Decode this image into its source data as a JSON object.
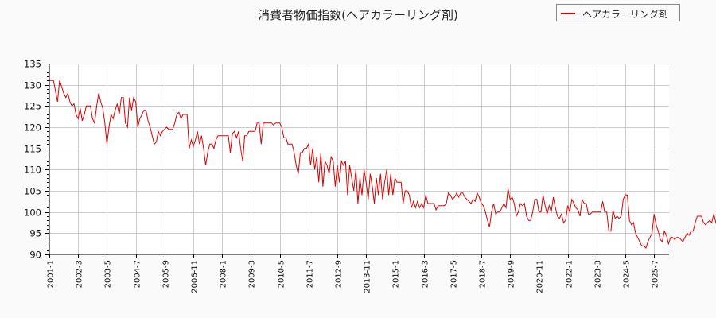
{
  "chart_data": {
    "type": "line",
    "title": "消費者物価指数(ヘアカラーリング剤)",
    "xlabel": "",
    "ylabel": "",
    "ylim": [
      90,
      135
    ],
    "yticks": [
      90,
      95,
      100,
      105,
      110,
      115,
      120,
      125,
      130,
      135
    ],
    "xticks": [
      "2001-1",
      "2002-3",
      "2003-5",
      "2004-7",
      "2005-9",
      "2006-11",
      "2008-1",
      "2009-3",
      "2010-5",
      "2011-7",
      "2012-9",
      "2013-11",
      "2015-1",
      "2016-3",
      "2017-5",
      "2018-7",
      "2019-9",
      "2020-11",
      "2022-1",
      "2023-3",
      "2024-5",
      "2025-7"
    ],
    "grid": true,
    "legend_position": "top-right",
    "start": "2001-1",
    "frequency": "monthly",
    "series": [
      {
        "name": "ヘアカラーリング剤",
        "color": "#dd0000",
        "values": [
          131.0,
          131.0,
          131.0,
          128.5,
          126.0,
          131.0,
          129.5,
          128.0,
          127.0,
          128.0,
          126.0,
          125.0,
          125.5,
          123.0,
          122.0,
          124.5,
          121.5,
          123.0,
          125.0,
          125.0,
          125.0,
          122.0,
          121.0,
          125.0,
          128.0,
          126.0,
          124.5,
          121.0,
          116.0,
          120.0,
          123.0,
          122.0,
          124.0,
          125.5,
          123.0,
          127.0,
          127.0,
          121.0,
          120.0,
          127.0,
          124.0,
          127.0,
          126.0,
          120.0,
          122.0,
          123.0,
          124.0,
          124.0,
          121.5,
          120.0,
          118.0,
          116.0,
          116.5,
          119.0,
          118.0,
          119.0,
          119.5,
          120.0,
          119.5,
          119.5,
          119.5,
          121.0,
          123.0,
          123.5,
          122.0,
          123.0,
          123.0,
          123.0,
          115.0,
          117.0,
          115.5,
          117.0,
          119.0,
          116.0,
          118.0,
          115.0,
          111.0,
          114.0,
          116.0,
          116.0,
          115.0,
          117.0,
          118.0,
          118.0,
          118.0,
          118.0,
          118.0,
          118.0,
          114.0,
          118.5,
          119.0,
          117.5,
          119.0,
          115.0,
          112.0,
          118.0,
          118.0,
          119.0,
          119.0,
          119.0,
          119.0,
          121.0,
          121.0,
          116.0,
          121.0,
          121.0,
          121.0,
          121.0,
          121.0,
          120.5,
          121.0,
          121.0,
          121.0,
          120.0,
          117.5,
          117.5,
          116.0,
          116.0,
          116.0,
          114.0,
          111.0,
          109.0,
          114.0,
          114.0,
          115.0,
          115.0,
          116.0,
          111.0,
          115.0,
          110.0,
          113.0,
          107.0,
          114.0,
          106.0,
          112.0,
          111.0,
          109.0,
          113.0,
          112.0,
          106.0,
          111.0,
          107.0,
          112.0,
          111.0,
          112.0,
          104.0,
          111.0,
          108.0,
          105.0,
          110.0,
          102.0,
          108.0,
          104.0,
          110.0,
          107.0,
          103.0,
          109.0,
          106.0,
          102.0,
          108.0,
          104.0,
          109.0,
          103.0,
          107.0,
          110.0,
          104.0,
          109.0,
          104.0,
          108.0,
          107.0,
          107.0,
          107.0,
          102.0,
          105.0,
          105.0,
          104.0,
          101.0,
          102.5,
          101.0,
          102.5,
          101.0,
          102.0,
          101.0,
          104.0,
          102.0,
          102.0,
          102.0,
          102.0,
          100.5,
          101.5,
          101.5,
          101.5,
          101.5,
          102.0,
          104.5,
          104.0,
          103.0,
          103.5,
          104.5,
          103.5,
          104.5,
          104.5,
          103.5,
          103.0,
          102.5,
          102.0,
          103.0,
          102.5,
          104.5,
          103.5,
          102.0,
          101.5,
          100.0,
          98.0,
          96.5,
          100.0,
          102.0,
          99.5,
          100.0,
          100.0,
          101.0,
          102.0,
          101.0,
          105.5,
          103.0,
          103.5,
          102.0,
          99.0,
          100.0,
          102.0,
          101.5,
          102.0,
          99.0,
          98.0,
          98.0,
          100.0,
          103.0,
          103.0,
          100.0,
          100.0,
          104.0,
          101.5,
          99.5,
          101.5,
          100.0,
          103.5,
          101.0,
          99.0,
          98.5,
          99.5,
          97.5,
          98.0,
          101.5,
          100.0,
          103.0,
          102.0,
          101.0,
          100.5,
          99.0,
          103.0,
          102.0,
          102.0,
          99.5,
          99.5,
          100.0,
          100.0,
          100.0,
          100.0,
          100.0,
          102.5,
          100.0,
          100.0,
          95.5,
          95.5,
          100.5,
          98.5,
          99.0,
          98.5,
          99.0,
          103.0,
          104.0,
          104.0,
          98.0,
          97.0,
          97.5,
          95.0,
          94.0,
          93.0,
          92.0,
          92.0,
          91.5,
          93.0,
          94.0,
          95.0,
          99.5,
          97.0,
          95.5,
          93.5,
          93.0,
          95.5,
          94.5,
          92.5,
          94.0,
          94.0,
          93.5,
          94.0,
          94.0,
          93.5,
          93.0,
          94.0,
          95.0,
          94.5,
          95.5,
          95.5,
          97.5,
          99.0,
          99.0,
          99.0,
          97.5,
          97.0,
          97.5,
          98.0,
          97.5,
          99.5,
          97.5,
          99.0,
          100.0,
          100.0,
          98.0,
          98.5,
          98.5,
          101.0
        ]
      }
    ]
  },
  "legend": {
    "label": "ヘアカラーリング剤"
  }
}
